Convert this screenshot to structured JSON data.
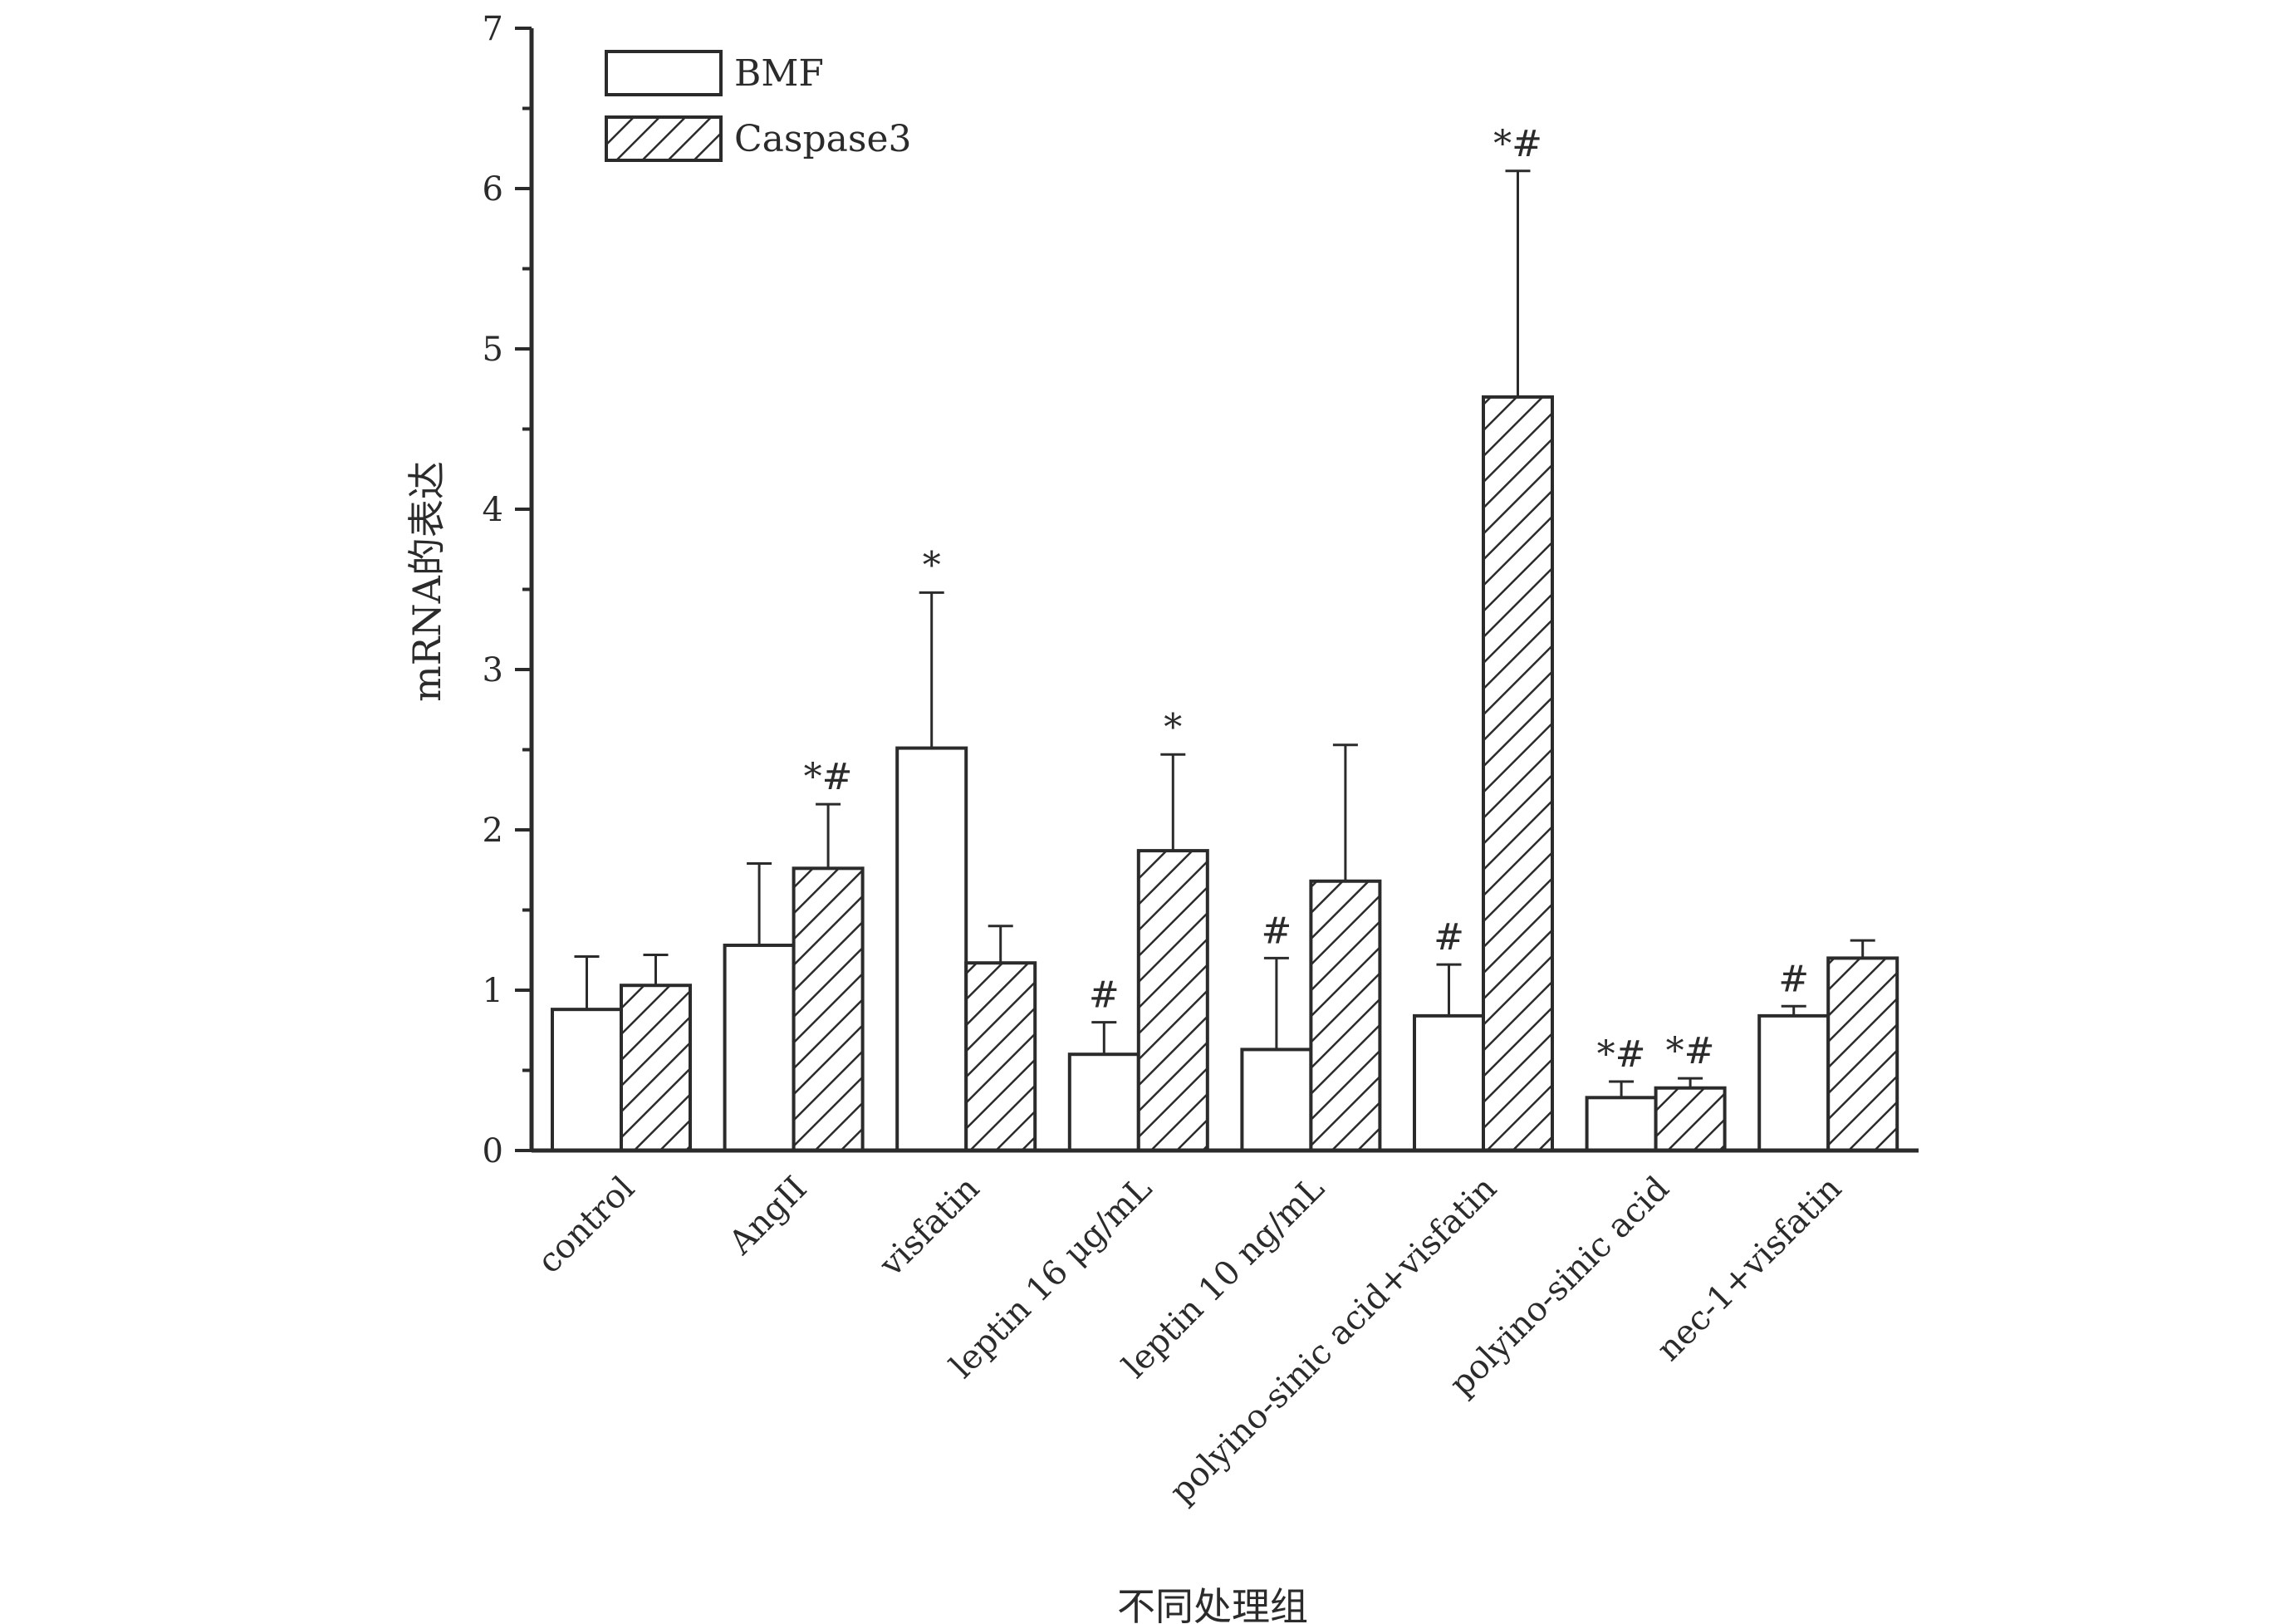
{
  "chart_data": {
    "type": "bar",
    "title": "",
    "xlabel": "不同处理组",
    "ylabel": "mRNA的表达",
    "ylim": [
      0,
      7
    ],
    "yticks": [
      0,
      1,
      2,
      3,
      4,
      5,
      6,
      7
    ],
    "grid": false,
    "legend_position": "top-left",
    "categories": [
      "control",
      "AngII",
      "visfatin",
      "leptin 16 μg/mL",
      "leptin 10 ng/mL",
      "polyino-sinic acid+visfatin",
      "polyino-sinic acid",
      "nec-1+visfatin"
    ],
    "series": [
      {
        "name": "BMF",
        "pattern": "open",
        "values": [
          0.88,
          1.28,
          2.51,
          0.6,
          0.63,
          0.84,
          0.33,
          0.84
        ],
        "errors": [
          0.33,
          0.51,
          0.97,
          0.2,
          0.57,
          0.32,
          0.1,
          0.06
        ],
        "annotations": [
          "",
          "",
          "*",
          "#",
          "#",
          "#",
          "*#",
          "#"
        ]
      },
      {
        "name": "Caspase3",
        "pattern": "hatched",
        "values": [
          1.03,
          1.76,
          1.17,
          1.87,
          1.68,
          4.7,
          0.39,
          1.2
        ],
        "errors": [
          0.19,
          0.4,
          0.23,
          0.6,
          0.85,
          1.41,
          0.06,
          0.11
        ],
        "annotations": [
          "",
          "*#",
          "",
          "*",
          "",
          "*#",
          "*#",
          ""
        ]
      }
    ],
    "colors": {
      "stroke": "#2b2b2b",
      "open_fill": "#ffffff",
      "hatch": "#2b2b2b"
    }
  }
}
